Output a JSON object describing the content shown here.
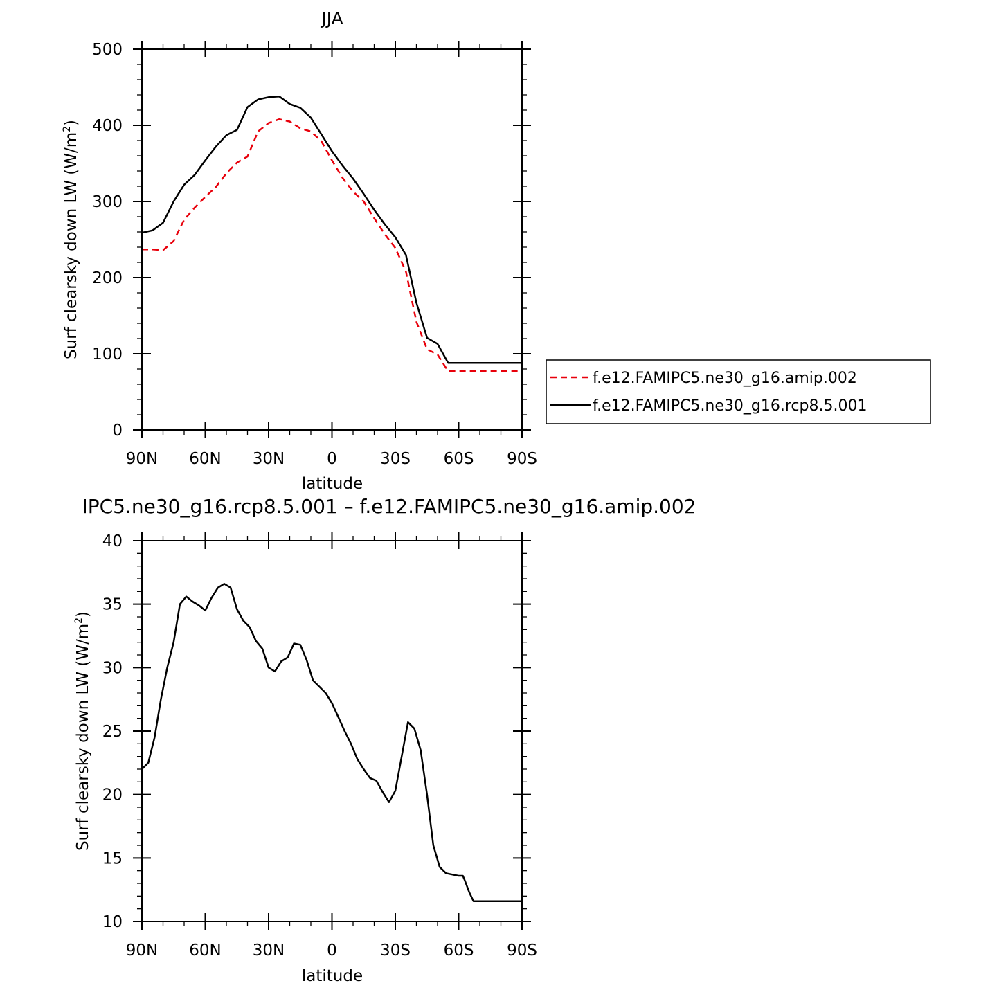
{
  "chart_data": [
    {
      "type": "line",
      "title": "JJA",
      "xlabel": "latitude",
      "ylabel": "Surf clearsky down LW (W/m²)",
      "ylabel_main": "Surf clearsky down LW (W/m",
      "ylabel_sup": "2",
      "ylabel_close": ")",
      "xlim": [
        90,
        -90
      ],
      "ylim": [
        0,
        500
      ],
      "xticks": [
        {
          "value": 90,
          "label": "90N"
        },
        {
          "value": 60,
          "label": "60N"
        },
        {
          "value": 30,
          "label": "30N"
        },
        {
          "value": 0,
          "label": "0"
        },
        {
          "value": -30,
          "label": "30S"
        },
        {
          "value": -60,
          "label": "60S"
        },
        {
          "value": -90,
          "label": "90S"
        }
      ],
      "yticks": [
        0,
        100,
        200,
        300,
        400,
        500
      ],
      "legend_position": "right",
      "x": [
        90,
        85,
        80,
        75,
        70,
        65,
        60,
        55,
        50,
        45,
        40,
        35,
        30,
        25,
        20,
        15,
        10,
        5,
        0,
        -5,
        -10,
        -15,
        -20,
        -25,
        -30,
        -35,
        -40,
        -45,
        -50,
        -55,
        -60,
        -65,
        -70,
        -75,
        -80,
        -85,
        -90
      ],
      "series": [
        {
          "name": "f.e12.FAMIPC5.ne30_g16.amip.002",
          "color": "#e8000b",
          "dash": "dashed",
          "values": [
            237,
            237,
            236,
            248,
            276,
            292,
            306,
            319,
            337,
            351,
            359,
            392,
            403,
            408,
            405,
            396,
            392,
            379,
            354,
            331,
            313,
            300,
            278,
            257,
            239,
            208,
            142,
            106,
            99,
            77,
            77,
            77,
            77,
            77,
            77,
            77,
            77
          ]
        },
        {
          "name": "f.e12.FAMIPC5.ne30_g16.rcp8.5.001",
          "color": "#000000",
          "dash": "solid",
          "values": [
            259,
            262,
            272,
            300,
            322,
            335,
            354,
            372,
            387,
            394,
            424,
            434,
            437,
            438,
            428,
            423,
            410,
            388,
            366,
            347,
            330,
            310,
            289,
            270,
            253,
            230,
            167,
            121,
            113,
            88,
            88,
            88,
            88,
            88,
            88,
            88,
            88
          ]
        }
      ]
    },
    {
      "type": "line",
      "title": "IPC5.ne30_g16.rcp8.5.001 – f.e12.FAMIPC5.ne30_g16.amip.002",
      "xlabel": "latitude",
      "ylabel": "Surf clearsky down LW (W/m²)",
      "ylabel_main": "Surf clearsky down LW (W/m",
      "ylabel_sup": "2",
      "ylabel_close": ")",
      "xlim": [
        90,
        -90
      ],
      "ylim": [
        10,
        40
      ],
      "xticks": [
        {
          "value": 90,
          "label": "90N"
        },
        {
          "value": 60,
          "label": "60N"
        },
        {
          "value": 30,
          "label": "30N"
        },
        {
          "value": 0,
          "label": "0"
        },
        {
          "value": -30,
          "label": "30S"
        },
        {
          "value": -60,
          "label": "60S"
        },
        {
          "value": -90,
          "label": "90S"
        }
      ],
      "yticks": [
        10,
        15,
        20,
        25,
        30,
        35,
        40
      ],
      "x": [
        90,
        87,
        84,
        81,
        78,
        75,
        72,
        69,
        66,
        63,
        60,
        57,
        54,
        51,
        48,
        45,
        42,
        39,
        36,
        33,
        30,
        27,
        24,
        21,
        18,
        15,
        12,
        9,
        6,
        3,
        0,
        -3,
        -6,
        -9,
        -12,
        -15,
        -18,
        -21,
        -24,
        -27,
        -30,
        -33,
        -36,
        -39,
        -42,
        -45,
        -48,
        -51,
        -54,
        -57,
        -60,
        -62,
        -63,
        -65,
        -67,
        -69,
        -71,
        -73,
        -75,
        -77,
        -79,
        -81,
        -84,
        -87,
        -90
      ],
      "series": [
        {
          "name": "",
          "color": "#000000",
          "dash": "solid",
          "values": [
            22.0,
            22.5,
            24.5,
            27.5,
            30.0,
            32.0,
            35.0,
            35.6,
            35.2,
            34.9,
            34.5,
            35.5,
            36.3,
            36.6,
            36.3,
            34.6,
            33.7,
            33.2,
            32.1,
            31.5,
            30.0,
            29.7,
            30.5,
            30.8,
            31.9,
            31.8,
            30.6,
            29.0,
            28.5,
            28.0,
            27.2,
            26.1,
            25.0,
            24.0,
            22.8,
            22.0,
            21.3,
            21.1,
            20.2,
            19.4,
            20.3,
            23.0,
            25.7,
            25.2,
            23.5,
            20.0,
            16.0,
            14.3,
            13.8,
            13.7,
            13.6,
            13.6,
            13.2,
            12.3,
            11.6,
            11.6,
            11.6,
            11.6,
            11.6,
            11.6,
            11.6,
            11.6,
            11.6,
            11.6,
            11.6
          ]
        }
      ]
    }
  ]
}
